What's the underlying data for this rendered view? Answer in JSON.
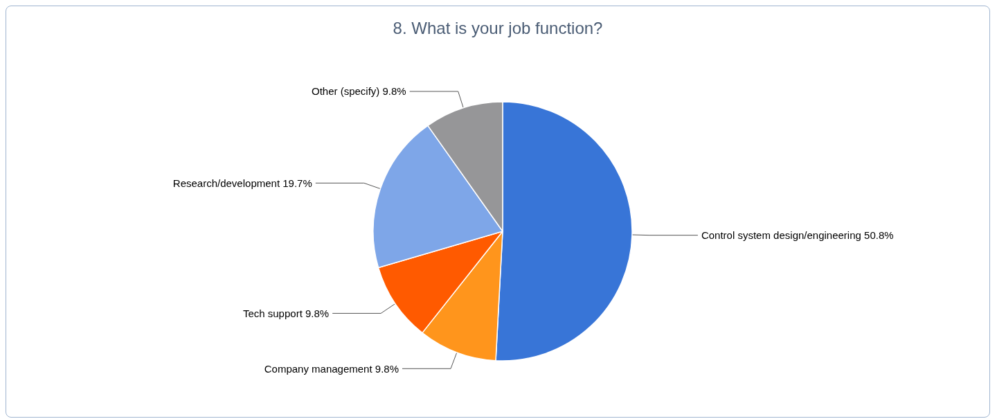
{
  "chart_data": {
    "type": "pie",
    "title": "8. What is your job function?",
    "categories": [
      "Control system design/engineering",
      "Company management",
      "Tech support",
      "Research/development",
      "Other (specify)"
    ],
    "values": [
      50.8,
      9.8,
      9.8,
      19.7,
      9.8
    ],
    "colors": [
      "#3875d7",
      "#ff951c",
      "#ff5a00",
      "#7ea6e8",
      "#969698"
    ],
    "value_labels": [
      "50.8%",
      "9.8%",
      "9.8%",
      "19.7%",
      "9.8%"
    ],
    "legend": false
  }
}
